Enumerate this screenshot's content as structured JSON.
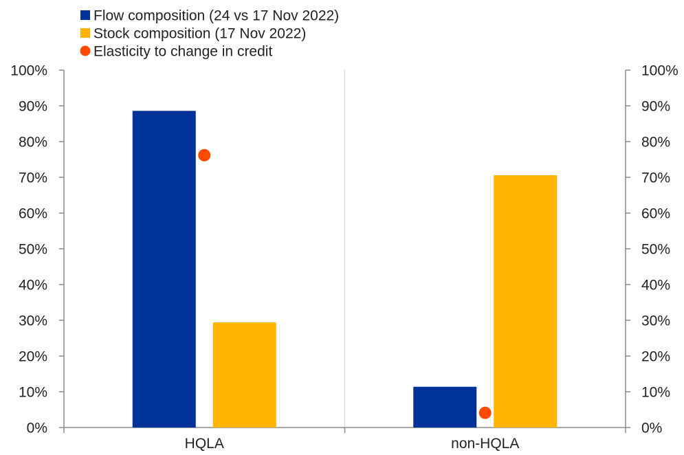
{
  "chart_data": {
    "type": "bar",
    "title": "",
    "xlabel": "",
    "ylabel": "",
    "categories": [
      "HQLA",
      "non-HQLA"
    ],
    "series": [
      {
        "name": "Flow composition (24 vs 17 Nov 2022)",
        "kind": "bar",
        "color": "#003399",
        "values": [
          88.6,
          11.4
        ]
      },
      {
        "name": "Stock composition (17 Nov 2022)",
        "kind": "bar",
        "color": "#ffb400",
        "values": [
          29.4,
          70.6
        ]
      },
      {
        "name": "Elasticity to change in credit",
        "kind": "dot",
        "color": "#ff4b00",
        "values": [
          76.2,
          4.1
        ]
      }
    ],
    "ylim": [
      0,
      100
    ],
    "yticks": [
      0,
      10,
      20,
      30,
      40,
      50,
      60,
      70,
      80,
      90,
      100
    ],
    "ytick_labels": [
      "0%",
      "10%",
      "20%",
      "30%",
      "40%",
      "50%",
      "60%",
      "70%",
      "80%",
      "90%",
      "100%"
    ],
    "y2ticks": [
      0,
      10,
      20,
      30,
      40,
      50,
      60,
      70,
      80,
      90,
      100
    ],
    "y2tick_labels": [
      "0%",
      "10%",
      "20%",
      "30%",
      "40%",
      "50%",
      "60%",
      "70%",
      "80%",
      "90%",
      "100%"
    ],
    "grid": "vertical category separator",
    "legend_position": "top-left"
  }
}
